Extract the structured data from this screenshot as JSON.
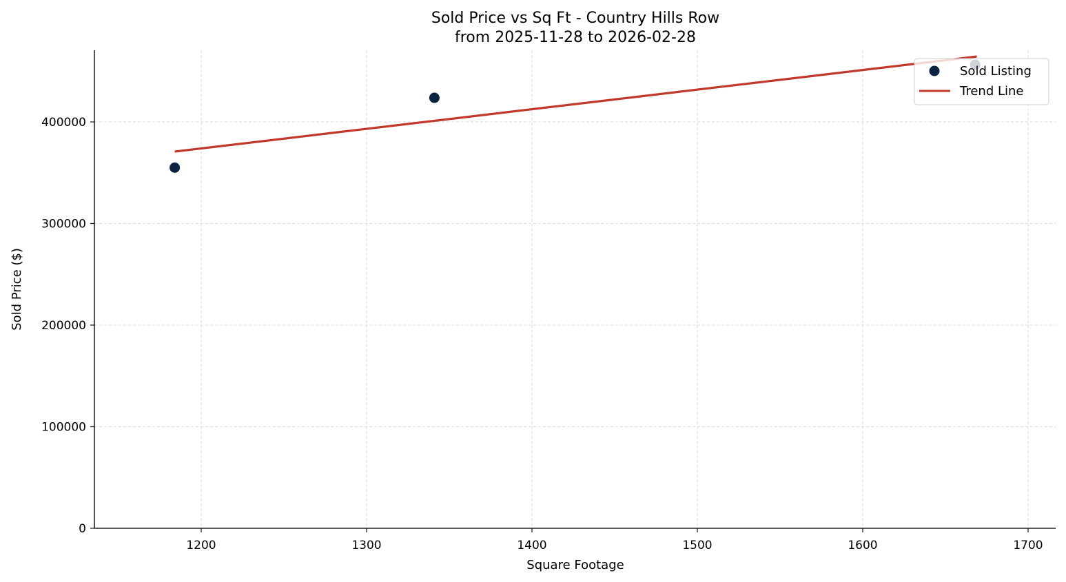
{
  "chart_data": {
    "type": "scatter",
    "title": "Sold Price vs Sq Ft - Country Hills Row",
    "subtitle": "from 2025-11-28 to 2026-02-28",
    "xlabel": "Square Footage",
    "ylabel": "Sold Price ($)",
    "xlim": [
      1135,
      1718
    ],
    "ylim": [
      0,
      470000
    ],
    "xticks": [
      1200,
      1300,
      1400,
      1500,
      1600,
      1700
    ],
    "yticks": [
      0,
      100000,
      200000,
      300000,
      400000
    ],
    "grid": true,
    "legend_position": "upper right",
    "series": [
      {
        "name": "Sold Listing",
        "kind": "scatter",
        "color": "#0b2240",
        "points": [
          {
            "x": 1184,
            "y": 355000
          },
          {
            "x": 1341,
            "y": 423700
          },
          {
            "x": 1668,
            "y": 456300
          }
        ]
      },
      {
        "name": "Trend Line",
        "kind": "line",
        "color": "#c0392b",
        "points": [
          {
            "x": 1184,
            "y": 370800
          },
          {
            "x": 1669,
            "y": 464400
          }
        ]
      }
    ]
  },
  "legend": {
    "items": [
      {
        "label": "Sold Listing",
        "marker": "circle",
        "color": "#0b2240"
      },
      {
        "label": "Trend Line",
        "marker": "line",
        "color": "#c0392b"
      }
    ]
  }
}
